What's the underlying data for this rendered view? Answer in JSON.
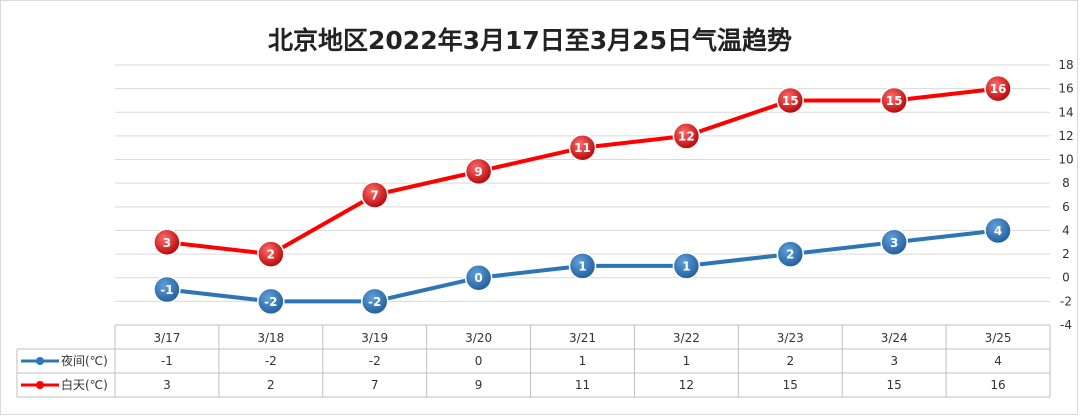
{
  "chart_data": {
    "type": "line",
    "title": "北京地区2022年3月17日至3月25日气温趋势",
    "categories": [
      "3/17",
      "3/18",
      "3/19",
      "3/20",
      "3/21",
      "3/22",
      "3/23",
      "3/24",
      "3/25"
    ],
    "series": [
      {
        "name": "夜间(℃)",
        "values": [
          -1,
          -2,
          -2,
          0,
          1,
          1,
          2,
          3,
          4
        ],
        "color": "#2e75b6"
      },
      {
        "name": "白天(℃)",
        "values": [
          3,
          2,
          7,
          9,
          11,
          12,
          15,
          15,
          16
        ],
        "color": "#ff0000"
      }
    ],
    "ylim": [
      -4,
      18
    ],
    "yticks": [
      -4,
      -2,
      0,
      2,
      4,
      6,
      8,
      10,
      12,
      14,
      16,
      18
    ],
    "y_axis_side": "right",
    "grid": true,
    "data_table": true
  }
}
